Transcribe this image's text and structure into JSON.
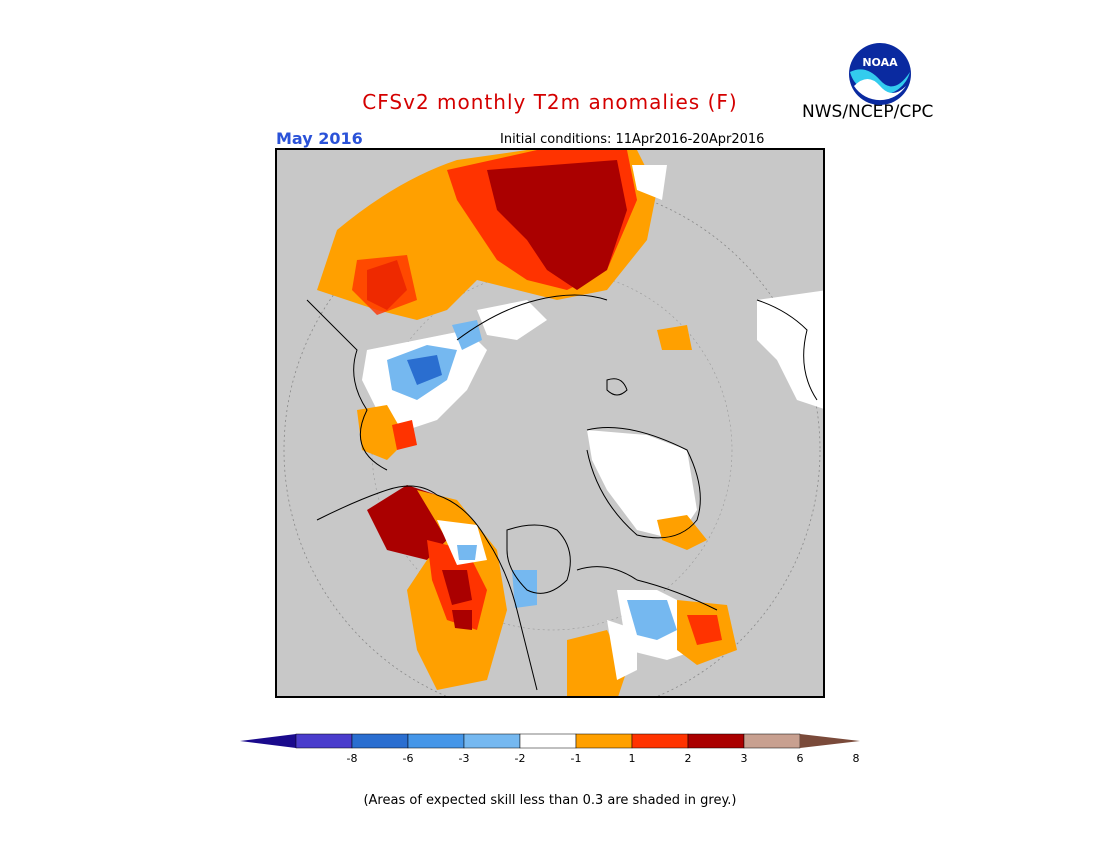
{
  "header": {
    "title": "CFSv2 monthly T2m anomalies (F)",
    "month": "May 2016",
    "initial_conditions": "Initial conditions: 11Apr2016-20Apr2016",
    "agency": "NWS/NCEP/CPC",
    "logo_text": "NOAA"
  },
  "colors": {
    "ocean_grey": "#c8c8c8",
    "dark_red": "#aa0000",
    "red": "#ff3300",
    "orange": "#ffa000",
    "white": "#ffffff",
    "light_blue": "#75b8f0",
    "blue": "#4596e8",
    "dark_blue": "#2a6ed0"
  },
  "colorbar": {
    "labels": [
      "-8",
      "-6",
      "-3",
      "-2",
      "-1",
      "1",
      "2",
      "3",
      "6",
      "8"
    ],
    "colors": [
      "#1a0a8c",
      "#4a3ccc",
      "#2a6ed0",
      "#4596e8",
      "#75b8f0",
      "#ffffff",
      "#ffa000",
      "#ff3300",
      "#aa0000",
      "#c8a090",
      "#7a4a3a"
    ]
  },
  "footnote": "(Areas of expected skill less than 0.3 are shaded in grey.)"
}
